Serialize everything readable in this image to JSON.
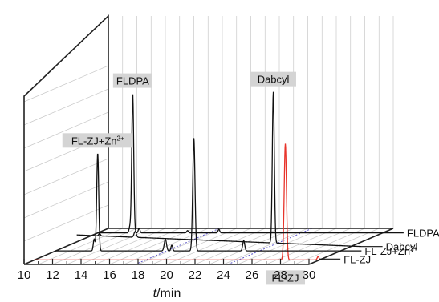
{
  "chart_data": {
    "type": "line",
    "style": "3d-waterfall",
    "xlabel_italic": "t",
    "xlabel_rest": "/min",
    "xlim": [
      10,
      30
    ],
    "xticks": [
      "10",
      "12",
      "14",
      "16",
      "18",
      "20",
      "22",
      "24",
      "26",
      "28",
      "30"
    ],
    "grid": true,
    "series": [
      {
        "name": "FL-ZJ",
        "color": "#e8342b",
        "baseline": 0.0,
        "peaks": [
          {
            "t": 27.6,
            "h": 1.0,
            "w": 0.08
          },
          {
            "t": 29.9,
            "h": 0.03,
            "w": 0.06
          }
        ]
      },
      {
        "name": "FL-ZJ+Zn",
        "name_sup": "2+",
        "color": "#111111",
        "baseline": 0.0,
        "peaks": [
          {
            "t": 12.7,
            "h": 0.1,
            "w": 0.06
          },
          {
            "t": 12.95,
            "h": 0.84,
            "w": 0.07
          },
          {
            "t": 17.7,
            "h": 0.1,
            "w": 0.08
          },
          {
            "t": 18.15,
            "h": 0.05,
            "w": 0.06
          },
          {
            "t": 19.7,
            "h": 0.97,
            "w": 0.08
          },
          {
            "t": 23.2,
            "h": 0.09,
            "w": 0.07
          }
        ]
      },
      {
        "name": "Dabcyl",
        "color": "#111111",
        "baseline": 0.06,
        "baseline_end": -0.04,
        "peaks": [
          {
            "t": 11.6,
            "h": 0.02,
            "w": 0.06
          },
          {
            "t": 14.1,
            "h": 0.05,
            "w": 0.08
          },
          {
            "t": 23.8,
            "h": 1.3,
            "w": 0.07
          }
        ]
      },
      {
        "name": "FLDPA",
        "color": "#111111",
        "baseline": 0.0,
        "peaks": [
          {
            "t": 12.25,
            "h": 0.05,
            "w": 0.06
          },
          {
            "t": 12.45,
            "h": 1.2,
            "w": 0.07
          },
          {
            "t": 12.9,
            "h": 0.04,
            "w": 0.06
          },
          {
            "t": 16.3,
            "h": 0.02,
            "w": 0.06
          },
          {
            "t": 18.5,
            "h": 0.03,
            "w": 0.06
          }
        ]
      }
    ],
    "annotations": [
      {
        "text": "FL-ZJ",
        "series": 0,
        "t": 27.6,
        "pos": "below"
      },
      {
        "text": "FL-ZJ+Zn",
        "sup": "2+",
        "series": 1,
        "t": 12.95,
        "pos": "above"
      },
      {
        "text": "Dabcyl",
        "series": 2,
        "t": 23.8,
        "pos": "above"
      },
      {
        "text": "FLDPA",
        "series": 3,
        "t": 12.45,
        "pos": "above"
      }
    ],
    "dashed_guides": [
      {
        "t": 17.8,
        "color": "#5b55c8"
      },
      {
        "t": 24.3,
        "color": "#5b55c8"
      }
    ]
  }
}
